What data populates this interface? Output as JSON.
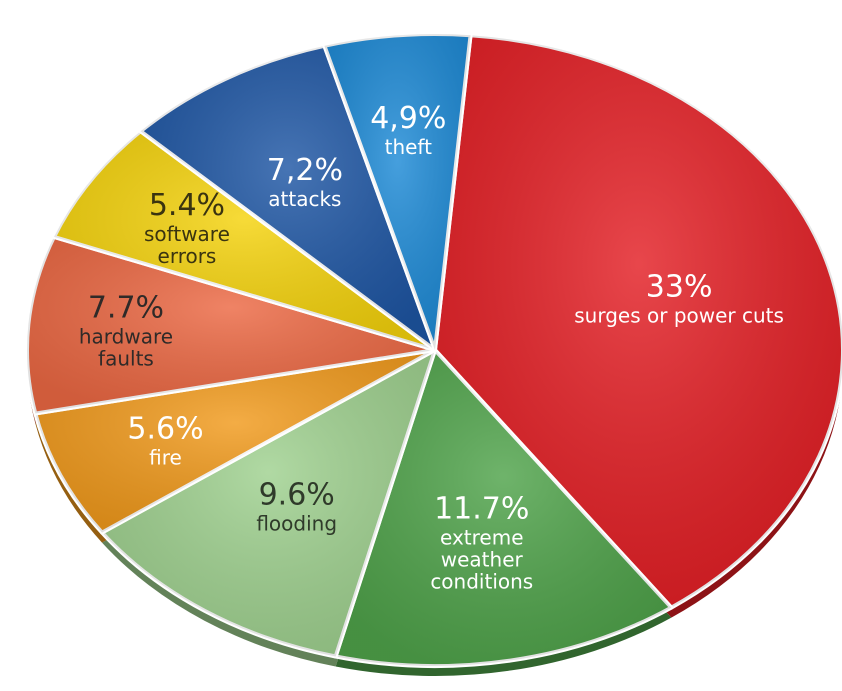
{
  "chart_data": {
    "type": "pie",
    "title": "",
    "slices": [
      {
        "label": "surges or power cuts",
        "value_label": "33%",
        "value": 33,
        "color": "#e31e24",
        "text_color": "#ffffff"
      },
      {
        "label": "extreme weather conditions",
        "value_label": "11.7%",
        "value": 11.7,
        "color": "#4fa34a",
        "text_color": "#ffffff"
      },
      {
        "label": "flooding",
        "value_label": "9.6%",
        "value": 9.6,
        "color": "#9fd18f",
        "text_color": "#2f3a2a"
      },
      {
        "label": "fire",
        "value_label": "5.6%",
        "value": 5.6,
        "color": "#f19a1c",
        "text_color": "#ffffff"
      },
      {
        "label": "hardware faults",
        "value_label": "7.7%",
        "value": 7.7,
        "color": "#ec6843",
        "text_color": "#2f2a28"
      },
      {
        "label": "software errors",
        "value_label": "5.4%",
        "value": 5.4,
        "color": "#f5d30c",
        "text_color": "#3a3410"
      },
      {
        "label": "attacks",
        "value_label": "7,2%",
        "value": 7.2,
        "color": "#1e56a4",
        "text_color": "#ffffff"
      },
      {
        "label": "theft",
        "value_label": "4,9%",
        "value": 4.9,
        "color": "#1d8ad6",
        "text_color": "#ffffff"
      }
    ]
  }
}
